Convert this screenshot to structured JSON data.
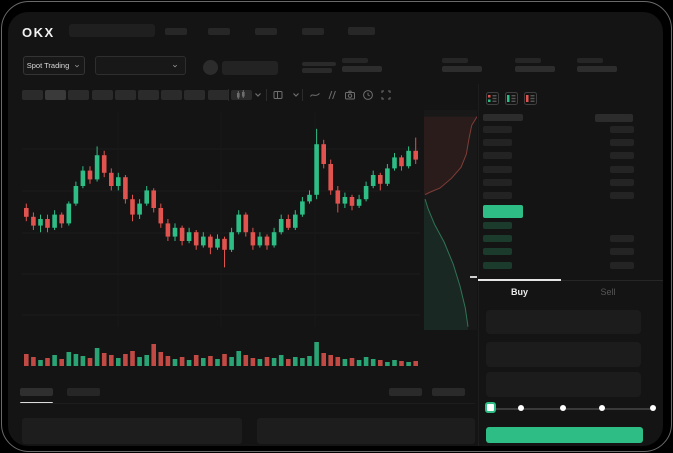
{
  "window": {
    "logo_text": "OKX"
  },
  "header": {
    "market_type_selector": {
      "label": "Spot Trading",
      "chevron_icon": "chevron-down-icon"
    },
    "pair_selector": {
      "chevron_icon": "chevron-down-icon"
    },
    "nav_placeholder_count": 5,
    "stat_pair_count": 4
  },
  "toolbar": {
    "timeframe_placeholder_count": 10,
    "active_timeframe_index": 1,
    "icons": [
      "chart-type-icon",
      "chevron-down-icon",
      "layout-icon",
      "chevron-down-icon",
      "line-curve-icon",
      "indicators-icon",
      "camera-icon",
      "clock-icon",
      "fullscreen-icon"
    ]
  },
  "chart_data": {
    "type": "candlestick",
    "title": "",
    "ylim": [
      30,
      100
    ],
    "grid": true,
    "up_color": "#2ebd85",
    "down_color": "#e0534e",
    "candles": [
      [
        60,
        56,
        62,
        54
      ],
      [
        56,
        52,
        58,
        50
      ],
      [
        52,
        55,
        57,
        49
      ],
      [
        55,
        51,
        57,
        49
      ],
      [
        51,
        57,
        59,
        50
      ],
      [
        57,
        53,
        58,
        51
      ],
      [
        53,
        62,
        63,
        52
      ],
      [
        62,
        70,
        72,
        61
      ],
      [
        70,
        77,
        79,
        69
      ],
      [
        77,
        73,
        79,
        71
      ],
      [
        73,
        84,
        88,
        72
      ],
      [
        84,
        76,
        86,
        74
      ],
      [
        76,
        70,
        78,
        68
      ],
      [
        70,
        74,
        76,
        68
      ],
      [
        74,
        64,
        75,
        62
      ],
      [
        64,
        57,
        66,
        54
      ],
      [
        57,
        62,
        64,
        55
      ],
      [
        62,
        68,
        70,
        61
      ],
      [
        68,
        60,
        69,
        58
      ],
      [
        60,
        53,
        62,
        51
      ],
      [
        53,
        47,
        55,
        45
      ],
      [
        47,
        51,
        53,
        45
      ],
      [
        51,
        45,
        52,
        43
      ],
      [
        45,
        49,
        51,
        44
      ],
      [
        49,
        43,
        50,
        41
      ],
      [
        43,
        47,
        49,
        42
      ],
      [
        47,
        42,
        48,
        39
      ],
      [
        42,
        46,
        48,
        41
      ],
      [
        46,
        41,
        47,
        33
      ],
      [
        41,
        49,
        51,
        40
      ],
      [
        49,
        57,
        59,
        48
      ],
      [
        57,
        49,
        58,
        47
      ],
      [
        49,
        43,
        51,
        41
      ],
      [
        43,
        47,
        49,
        42
      ],
      [
        47,
        43,
        48,
        41
      ],
      [
        43,
        49,
        51,
        42
      ],
      [
        49,
        55,
        57,
        48
      ],
      [
        55,
        51,
        57,
        50
      ],
      [
        51,
        57,
        59,
        50
      ],
      [
        57,
        63,
        65,
        56
      ],
      [
        63,
        66,
        68,
        62
      ],
      [
        66,
        89,
        96,
        64
      ],
      [
        89,
        80,
        91,
        78
      ],
      [
        80,
        68,
        82,
        66
      ],
      [
        68,
        62,
        70,
        58
      ],
      [
        62,
        65,
        67,
        60
      ],
      [
        65,
        61,
        66,
        59
      ],
      [
        61,
        64,
        66,
        60
      ],
      [
        64,
        70,
        72,
        63
      ],
      [
        70,
        75,
        77,
        69
      ],
      [
        75,
        71,
        76,
        68
      ],
      [
        71,
        78,
        80,
        70
      ],
      [
        78,
        83,
        85,
        77
      ],
      [
        83,
        79,
        84,
        77
      ],
      [
        79,
        86,
        88,
        78
      ],
      [
        86,
        82,
        92,
        80
      ]
    ],
    "volumes": [
      12,
      9,
      6,
      8,
      11,
      7,
      14,
      12,
      10,
      8,
      18,
      13,
      11,
      8,
      12,
      15,
      9,
      11,
      22,
      14,
      10,
      7,
      9,
      6,
      11,
      8,
      10,
      7,
      12,
      9,
      15,
      11,
      8,
      7,
      9,
      8,
      11,
      7,
      9,
      8,
      10,
      24,
      13,
      11,
      9,
      7,
      8,
      6,
      9,
      7,
      6,
      4,
      6,
      5,
      4,
      5
    ]
  },
  "depth_chart": {
    "ask_color": "#e0534e",
    "bid_color": "#2ebd85",
    "asks_line": [
      [
        1.0,
        0.03
      ],
      [
        0.9,
        0.07
      ],
      [
        0.85,
        0.13
      ],
      [
        0.8,
        0.2
      ],
      [
        0.7,
        0.26
      ],
      [
        0.52,
        0.31
      ],
      [
        0.3,
        0.355
      ],
      [
        0.1,
        0.375
      ],
      [
        0.02,
        0.385
      ]
    ],
    "bids_line": [
      [
        0.02,
        0.405
      ],
      [
        0.08,
        0.45
      ],
      [
        0.2,
        0.52
      ],
      [
        0.38,
        0.6
      ],
      [
        0.55,
        0.7
      ],
      [
        0.68,
        0.8
      ],
      [
        0.78,
        0.9
      ],
      [
        0.83,
        0.985
      ]
    ]
  },
  "order_book": {
    "mode_icons": [
      "book-split-icon",
      "book-bids-only-icon",
      "book-asks-only-icon"
    ],
    "ask_row_count": 6,
    "bid_row_count": 4,
    "last_price_highlight_color": "#2ebd85"
  },
  "trade_panel": {
    "tabs": {
      "buy": "Buy",
      "sell": "Sell",
      "active": "buy"
    },
    "input_count": 3,
    "slider": {
      "stops": 5,
      "value_index": 0
    },
    "submit_color": "#2ebd85"
  },
  "bottom_panel": {
    "tab_placeholder_count": 2,
    "active_tab_index": 0,
    "right_placeholder_count": 2,
    "content_placeholder_count": 2
  }
}
